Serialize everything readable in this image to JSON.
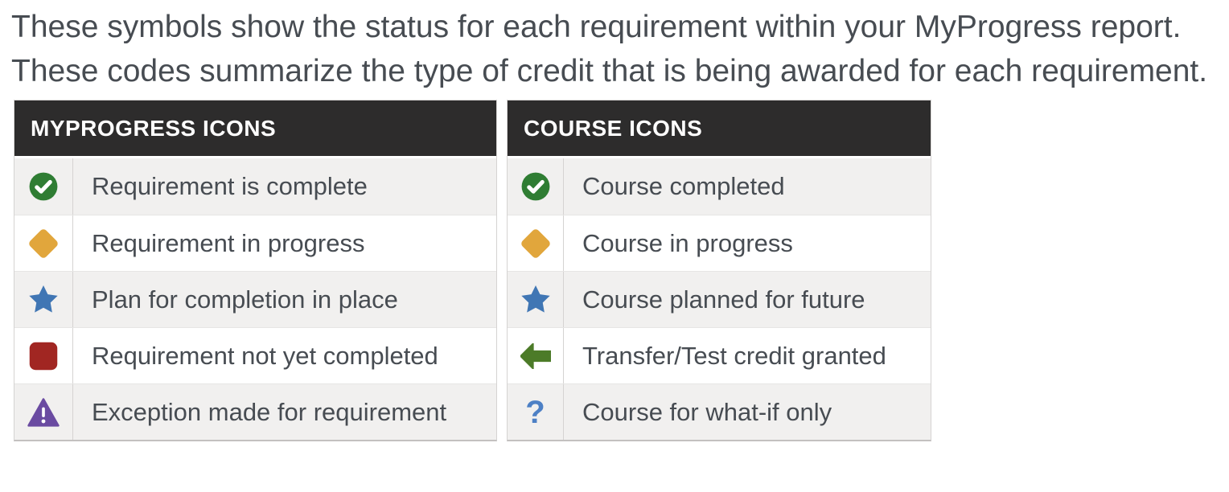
{
  "page": {
    "intro_line1": "These symbols show the status for each requirement within your MyProgress report.",
    "intro_line2": "These codes summarize the type of credit that is being awarded for each requirement."
  },
  "colors": {
    "header_bg": "#2d2c2c",
    "header_text": "#ffffff",
    "row_alt_bg": "#f1f0ef",
    "row_bg": "#ffffff",
    "border": "#d5d3d2",
    "body_text": "#474c52",
    "status_complete_green": "#2f7d33",
    "status_in_progress_gold": "#e1a63c",
    "status_planned_blue": "#4076b4",
    "status_not_complete_red": "#a12622",
    "status_exception_purple": "#6a4ba1",
    "transfer_credit_green": "#4c7b28",
    "whatif_blue": "#4d80c5"
  },
  "tables": [
    {
      "header": "MYPROGRESS ICONS",
      "rows": [
        {
          "icon": "check-circle-icon",
          "color_key": "status_complete_green",
          "label": "Requirement is complete"
        },
        {
          "icon": "diamond-icon",
          "color_key": "status_in_progress_gold",
          "label": "Requirement in progress"
        },
        {
          "icon": "star-icon",
          "color_key": "status_planned_blue",
          "label": "Plan for completion in place"
        },
        {
          "icon": "square-icon",
          "color_key": "status_not_complete_red",
          "label": "Requirement not yet completed"
        },
        {
          "icon": "warning-triangle-icon",
          "color_key": "status_exception_purple",
          "label": "Exception made for requirement"
        }
      ]
    },
    {
      "header": "COURSE ICONS",
      "rows": [
        {
          "icon": "check-circle-icon",
          "color_key": "status_complete_green",
          "label": "Course completed"
        },
        {
          "icon": "diamond-icon",
          "color_key": "status_in_progress_gold",
          "label": "Course in progress"
        },
        {
          "icon": "star-icon",
          "color_key": "status_planned_blue",
          "label": "Course planned for future"
        },
        {
          "icon": "arrow-left-icon",
          "color_key": "transfer_credit_green",
          "label": "Transfer/Test credit granted"
        },
        {
          "icon": "question-mark-icon",
          "color_key": "whatif_blue",
          "label": "Course for what-if only"
        }
      ]
    }
  ]
}
